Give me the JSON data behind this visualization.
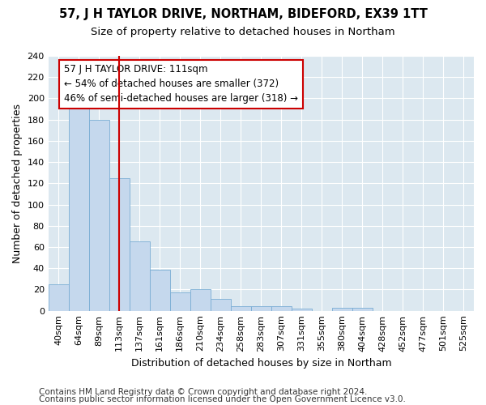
{
  "title": "57, J H TAYLOR DRIVE, NORTHAM, BIDEFORD, EX39 1TT",
  "subtitle": "Size of property relative to detached houses in Northam",
  "xlabel": "Distribution of detached houses by size in Northam",
  "ylabel": "Number of detached properties",
  "bin_labels": [
    "40sqm",
    "64sqm",
    "89sqm",
    "113sqm",
    "137sqm",
    "161sqm",
    "186sqm",
    "210sqm",
    "234sqm",
    "258sqm",
    "283sqm",
    "307sqm",
    "331sqm",
    "355sqm",
    "380sqm",
    "404sqm",
    "428sqm",
    "452sqm",
    "477sqm",
    "501sqm",
    "525sqm"
  ],
  "bar_values": [
    25,
    194,
    180,
    125,
    65,
    39,
    17,
    20,
    11,
    4,
    4,
    4,
    2,
    0,
    3,
    3,
    0,
    0,
    0,
    0,
    0
  ],
  "bar_color": "#c5d8ed",
  "bar_edge_color": "#7aadd4",
  "vline_x": 3.0,
  "vline_color": "#cc0000",
  "annotation_line1": "57 J H TAYLOR DRIVE: 111sqm",
  "annotation_line2": "← 54% of detached houses are smaller (372)",
  "annotation_line3": "46% of semi-detached houses are larger (318) →",
  "annotation_box_color": "#ffffff",
  "annotation_box_edge": "#cc0000",
  "ylim": [
    0,
    240
  ],
  "yticks": [
    0,
    20,
    40,
    60,
    80,
    100,
    120,
    140,
    160,
    180,
    200,
    220,
    240
  ],
  "background_color": "#dce8f0",
  "footer_line1": "Contains HM Land Registry data © Crown copyright and database right 2024.",
  "footer_line2": "Contains public sector information licensed under the Open Government Licence v3.0.",
  "title_fontsize": 10.5,
  "subtitle_fontsize": 9.5,
  "axis_label_fontsize": 9,
  "tick_fontsize": 8,
  "annotation_fontsize": 8.5,
  "footer_fontsize": 7.5
}
